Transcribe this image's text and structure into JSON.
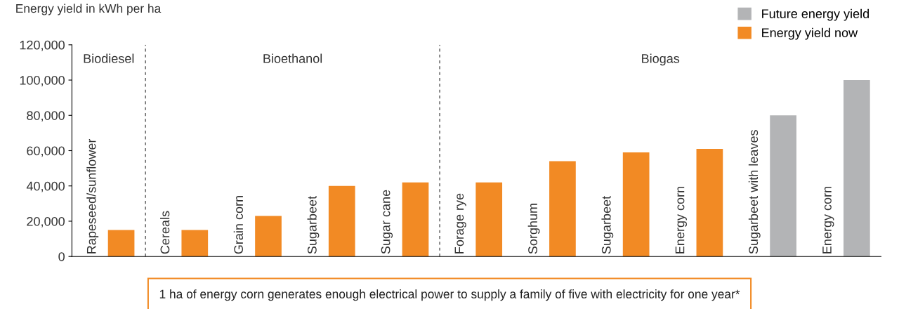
{
  "chart_data": {
    "type": "bar",
    "ylabel": "Energy yield in kWh per ha",
    "categories": [
      "Rapeseed/sunflower",
      "Cereals",
      "Grain corn",
      "Sugarbeet",
      "Sugar cane",
      "Forage rye",
      "Sorghum",
      "Sugarbeet",
      "Energy corn",
      "Sugarbeet with leaves",
      "Energy corn"
    ],
    "series": [
      {
        "name": "Future energy yield",
        "color": "#b3b4b6",
        "values": [
          null,
          null,
          null,
          null,
          null,
          null,
          null,
          null,
          null,
          80000,
          100000
        ]
      },
      {
        "name": "Energy yield now",
        "color": "#f28a24",
        "values": [
          15000,
          15000,
          23000,
          40000,
          42000,
          42000,
          54000,
          59000,
          61000,
          null,
          null
        ]
      }
    ],
    "ylim": [
      0,
      120000
    ],
    "yticks": [
      {
        "value": 0,
        "label": "0"
      },
      {
        "value": 20000,
        "label": "20,000"
      },
      {
        "value": 40000,
        "label": "40,000"
      },
      {
        "value": 60000,
        "label": "60,000"
      },
      {
        "value": 80000,
        "label": "80,000"
      },
      {
        "value": 100000,
        "label": "100,000"
      },
      {
        "value": 120000,
        "label": "120,000"
      }
    ],
    "ref_lines": [
      {
        "axis": "x",
        "value": "Cereals",
        "line_style": "dashed",
        "color": "#555555"
      },
      {
        "axis": "x",
        "value": "Forage rye",
        "line_style": "dashed",
        "color": "#555555"
      }
    ],
    "annotations": [
      "Biodiesel",
      "Bioethanol",
      "Biogas",
      "1 ha of energy corn generates enough electrical power to supply a family of five with electricity for one year*"
    ],
    "legend": "top right",
    "grid": false
  }
}
